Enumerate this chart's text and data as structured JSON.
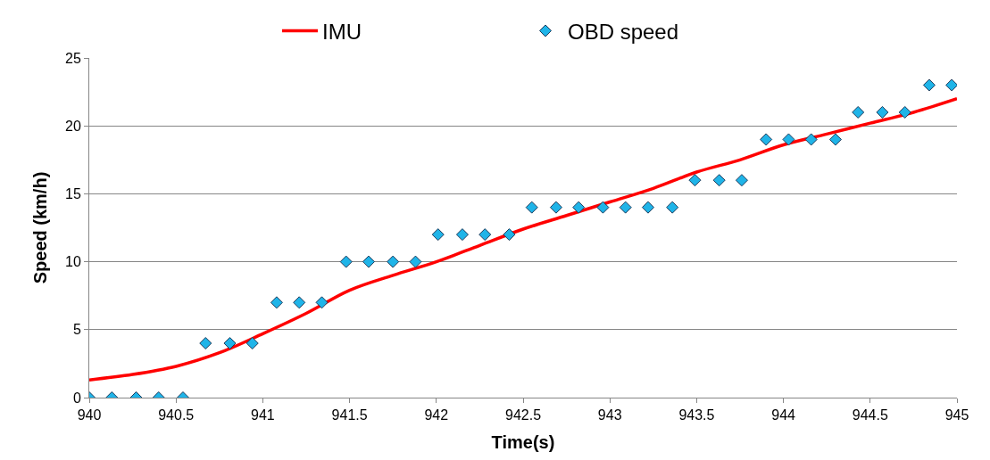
{
  "chart_data": {
    "type": "line",
    "xlabel": "Time(s)",
    "ylabel": "Speed (km/h)",
    "xlim": [
      940,
      945
    ],
    "xticks": [
      940,
      940.5,
      941,
      941.5,
      942,
      942.5,
      943,
      943.5,
      944,
      944.5,
      945
    ],
    "ylim": [
      0,
      25
    ],
    "yticks": [
      0,
      5,
      10,
      15,
      20,
      25
    ],
    "grid": "y",
    "legend": "top",
    "series": [
      {
        "name": "IMU",
        "color": "#ff0000",
        "marker": "none",
        "line_style": "solid",
        "x": [
          940,
          940.25,
          940.5,
          940.75,
          941,
          941.25,
          941.5,
          941.75,
          942,
          942.25,
          942.5,
          942.75,
          943,
          943.25,
          943.5,
          943.75,
          944,
          944.25,
          944.5,
          944.75,
          945
        ],
        "values": [
          1.3,
          1.7,
          2.3,
          3.3,
          4.7,
          6.2,
          7.9,
          9.0,
          10.0,
          11.2,
          12.4,
          13.4,
          14.4,
          15.4,
          16.6,
          17.5,
          18.6,
          19.4,
          20.2,
          21.0,
          22.0
        ]
      },
      {
        "name": "OBD speed",
        "type": "scatter",
        "color": "#1fb4e8",
        "marker": "diamond",
        "x": [
          940.0,
          940.13,
          940.27,
          940.4,
          940.54,
          940.67,
          940.81,
          940.94,
          941.08,
          941.21,
          941.34,
          941.48,
          941.61,
          941.75,
          941.88,
          942.01,
          942.15,
          942.28,
          942.42,
          942.55,
          942.69,
          942.82,
          942.96,
          943.09,
          943.22,
          943.36,
          943.49,
          943.63,
          943.76,
          943.9,
          944.03,
          944.16,
          944.3,
          944.43,
          944.57,
          944.7,
          944.84,
          944.97
        ],
        "values": [
          0,
          0,
          0,
          0,
          0,
          4,
          4,
          4,
          7,
          7,
          7,
          10,
          10,
          10,
          10,
          12,
          12,
          12,
          12,
          14,
          14,
          14,
          14,
          14,
          14,
          14,
          16,
          16,
          16,
          19,
          19,
          19,
          19,
          21,
          21,
          21,
          23,
          23
        ]
      }
    ]
  }
}
